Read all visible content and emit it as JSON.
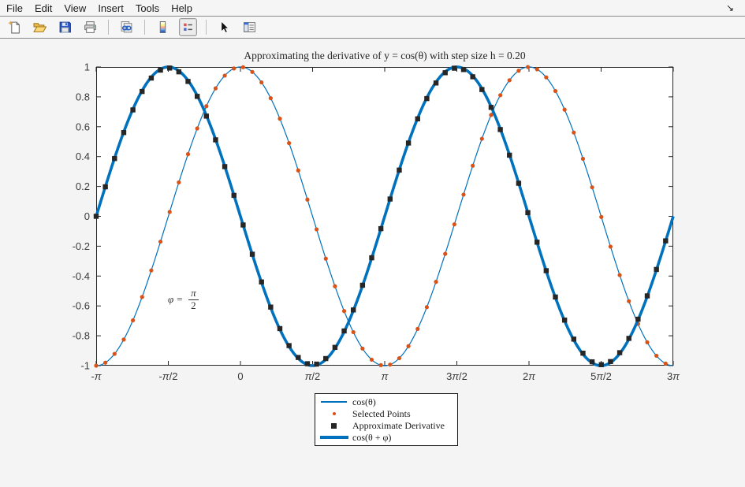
{
  "menu": {
    "items": [
      {
        "label": "File"
      },
      {
        "label": "Edit"
      },
      {
        "label": "View"
      },
      {
        "label": "Insert"
      },
      {
        "label": "Tools"
      },
      {
        "label": "Help"
      }
    ]
  },
  "window": {
    "dock_symbol": "↘"
  },
  "toolbar": {
    "buttons": [
      {
        "name": "new-figure",
        "icon": "new-document-icon"
      },
      {
        "name": "open-file",
        "icon": "open-folder-icon"
      },
      {
        "name": "save-figure",
        "icon": "save-floppy-icon"
      },
      {
        "name": "print-figure",
        "icon": "printer-icon"
      },
      {
        "name": "link-plot",
        "icon": "chain-link-icon"
      },
      {
        "name": "insert-colorbar",
        "icon": "colorbar-icon"
      },
      {
        "name": "insert-legend",
        "icon": "legend-icon",
        "pressed": true
      },
      {
        "name": "edit-plot",
        "icon": "pointer-arrow-icon"
      },
      {
        "name": "plot-tools",
        "icon": "plot-tools-panel-icon"
      }
    ]
  },
  "chart_data": {
    "type": "line",
    "title": "Approximating the derivative of y = cos(θ) with step size h = 0.20",
    "xlim": [
      -3.14159265,
      9.42477796
    ],
    "ylim": [
      -1,
      1
    ],
    "grid": false,
    "legend_position": "below-axes-center",
    "h_step": 0.2,
    "phi_radians": 1.57079633,
    "x_ticks": [
      {
        "v": -3.14159265,
        "label": "-π"
      },
      {
        "v": -1.57079633,
        "label": "-π/2"
      },
      {
        "v": 0,
        "label": "0"
      },
      {
        "v": 1.57079633,
        "label": "π/2"
      },
      {
        "v": 3.14159265,
        "label": "π"
      },
      {
        "v": 4.71238898,
        "label": "3π/2"
      },
      {
        "v": 6.28318531,
        "label": "2π"
      },
      {
        "v": 7.85398163,
        "label": "5π/2"
      },
      {
        "v": 9.42477796,
        "label": "3π"
      }
    ],
    "y_ticks": [
      {
        "v": 1,
        "label": "1"
      },
      {
        "v": 0.8,
        "label": "0.8"
      },
      {
        "v": 0.6,
        "label": "0.6"
      },
      {
        "v": 0.4,
        "label": "0.4"
      },
      {
        "v": 0.2,
        "label": "0.2"
      },
      {
        "v": 0,
        "label": "0"
      },
      {
        "v": -0.2,
        "label": "-0.2"
      },
      {
        "v": -0.4,
        "label": "-0.4"
      },
      {
        "v": -0.6,
        "label": "-0.6"
      },
      {
        "v": -0.8,
        "label": "-0.8"
      },
      {
        "v": -1,
        "label": "-1"
      }
    ],
    "series": [
      {
        "key": "cos-curve",
        "name": "cos(θ)",
        "plot": "line",
        "fn": "cos",
        "color": "#0072BD",
        "line_width": 1.2
      },
      {
        "key": "selected-points",
        "name": "Selected Points",
        "plot": "scatter",
        "fn": "cos",
        "marker": "dot",
        "color": "#D95319",
        "x_start": -3.14159265,
        "x_step": 0.2
      },
      {
        "key": "approximate-derivative",
        "name": "Approximate Derivative",
        "plot": "scatter",
        "fn": "central_difference_of_cos",
        "marker": "square",
        "color": "#262626",
        "x_start": -3.14159265,
        "x_step": 0.2
      },
      {
        "key": "cos-shifted-curve",
        "name": "cos(θ + φ)",
        "plot": "line",
        "fn": "cos_plus_phi",
        "color": "#0072BD",
        "line_width": 3.6
      }
    ],
    "draw_order": [
      0,
      1,
      3,
      2
    ],
    "annotation": {
      "text": "φ = π/2",
      "lhs": "φ =",
      "numerator": "π",
      "denominator": "2",
      "x": -1.58,
      "y": -0.58
    }
  },
  "legend": {
    "items": [
      {
        "label": "cos(θ)",
        "marker": "thin-line",
        "color": "#0072BD"
      },
      {
        "label": "Selected Points",
        "marker": "dot",
        "color": "#D95319"
      },
      {
        "label": "Approximate Derivative",
        "marker": "square",
        "color": "#262626"
      },
      {
        "label": "cos(θ + φ)",
        "marker": "thick-line",
        "color": "#0072BD"
      }
    ]
  },
  "colors": {
    "figure_background": "#f4f4f4",
    "plot_background": "#ffffff",
    "axis": "#262626",
    "tick_label": "#3a3a3a",
    "line_blue": "#0072BD",
    "point_orange": "#D95319",
    "marker_black": "#262626"
  }
}
